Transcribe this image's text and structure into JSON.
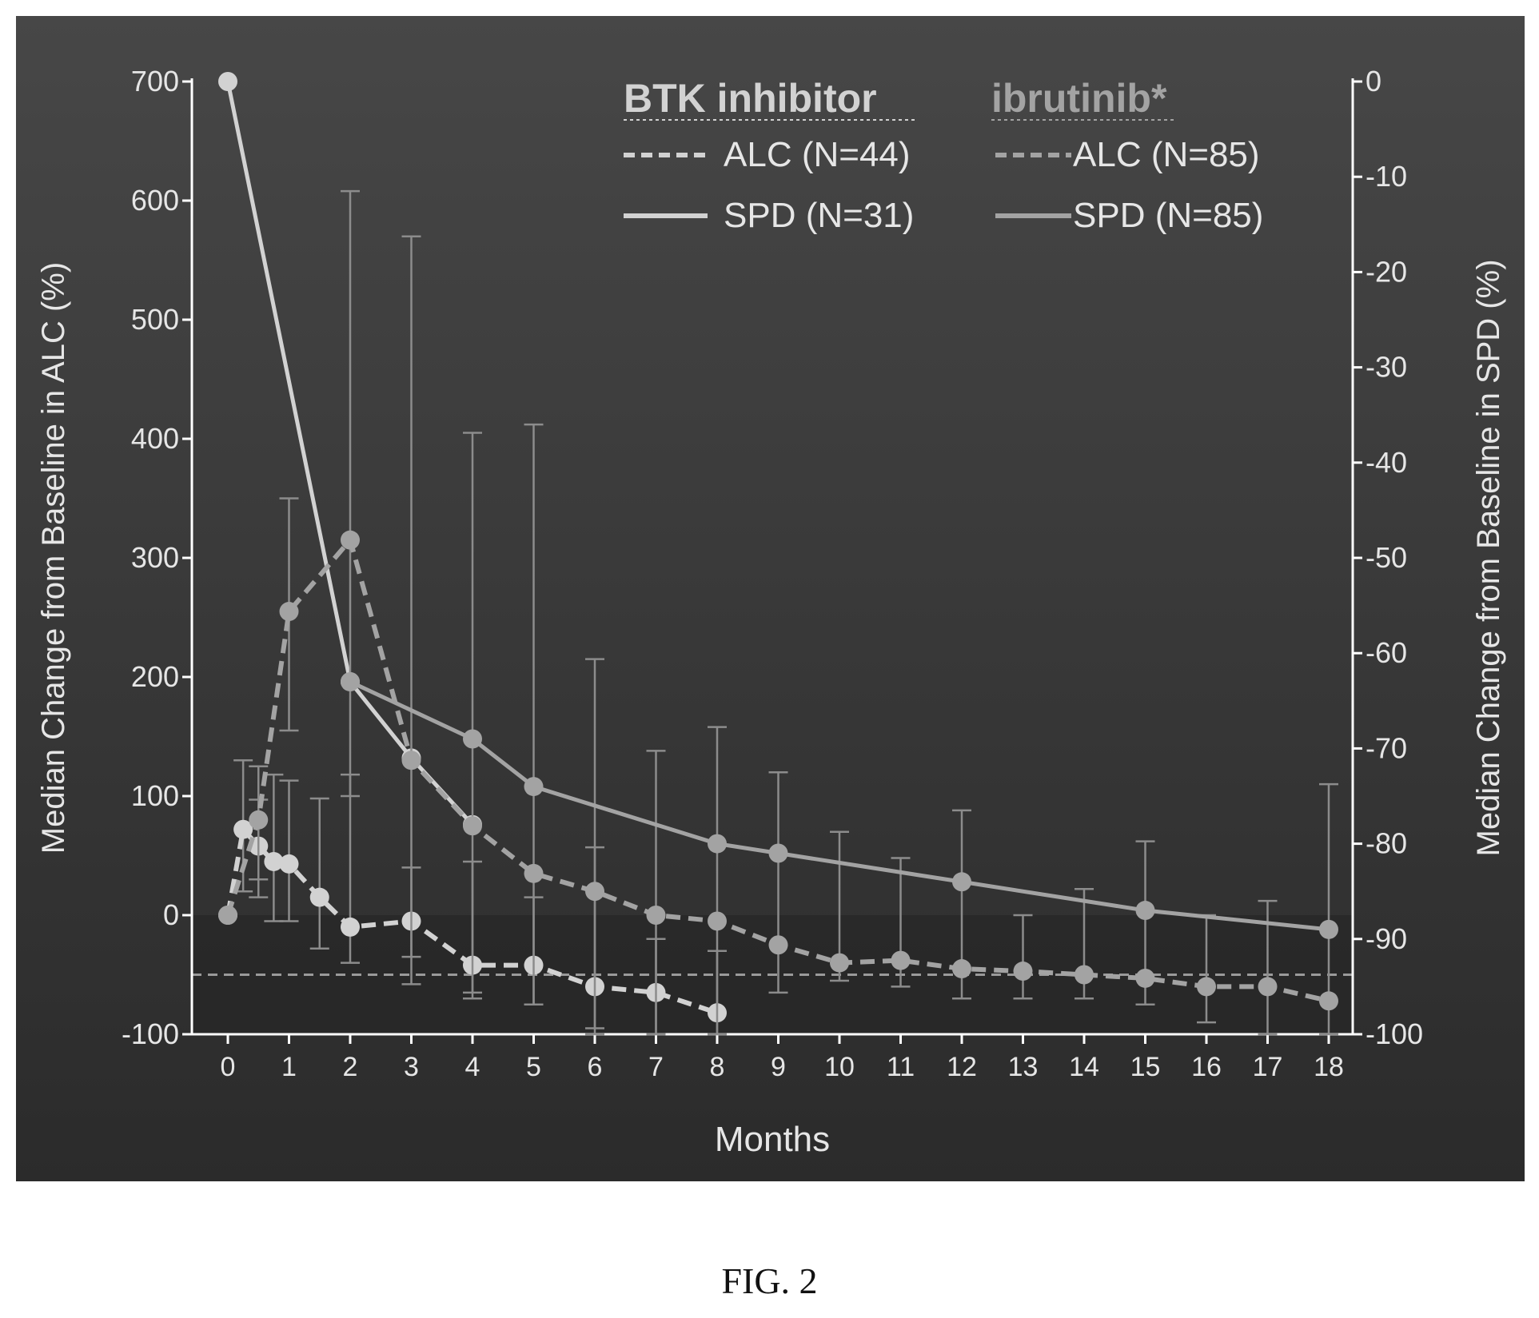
{
  "caption": "FIG. 2",
  "colors": {
    "panel": "#3c3c3c",
    "panel_dark": "#232323",
    "axis": "#ffffff",
    "text": "#e6e6e6",
    "btk": "#d2d2d2",
    "ibrutinib": "#a3a3a3",
    "error_bar": "#8c8c8c"
  },
  "chart_data": {
    "type": "line",
    "xlabel": "Months",
    "ylabel_left": "Median Change from Baseline in ALC (%)",
    "ylabel_right": "Median Change from Baseline in SPD (%)",
    "xlim": [
      0,
      18
    ],
    "ylim_left": [
      -100,
      700
    ],
    "ylim_right": [
      -100,
      0
    ],
    "x_ticks": [
      0,
      1,
      2,
      3,
      4,
      5,
      6,
      7,
      8,
      9,
      10,
      11,
      12,
      13,
      14,
      15,
      16,
      17,
      18
    ],
    "y_ticks_left": [
      -100,
      0,
      100,
      200,
      300,
      400,
      500,
      600,
      700
    ],
    "y_ticks_right": [
      -100,
      -90,
      -80,
      -70,
      -60,
      -50,
      -40,
      -30,
      -20,
      -10,
      0
    ],
    "reference_line": {
      "axis": "left",
      "value": -50,
      "style": "dashed"
    },
    "legend": {
      "placement": "top-center",
      "groups": [
        {
          "title": "BTK inhibitor",
          "entries": [
            "ALC (N=44)",
            "SPD (N=31)"
          ]
        },
        {
          "title": "ibrutinib*",
          "entries": [
            "ALC (N=85)",
            "SPD (N=85)"
          ]
        }
      ]
    },
    "series": [
      {
        "name": "ALC (N=44)",
        "group": "BTK inhibitor",
        "axis": "left",
        "style": "dashed",
        "x": [
          0,
          0.25,
          0.5,
          0.75,
          1,
          1.5,
          2,
          3,
          4,
          5,
          6,
          7,
          8
        ],
        "y": [
          0,
          72,
          58,
          45,
          43,
          15,
          -10,
          -5,
          -42,
          -42,
          -60,
          -65,
          -82
        ],
        "err_upper": [
          0,
          130,
          97,
          118,
          113,
          98,
          118,
          40,
          45,
          15,
          57,
          -20,
          -30
        ],
        "err_lower": [
          0,
          20,
          15,
          -5,
          -5,
          -28,
          -40,
          -58,
          -70,
          -75,
          -100,
          -100,
          -100
        ]
      },
      {
        "name": "SPD (N=31)",
        "group": "BTK inhibitor",
        "axis": "right",
        "style": "solid",
        "x": [
          0,
          2,
          3,
          4
        ],
        "y": [
          0,
          -63,
          -71,
          -78
        ]
      },
      {
        "name": "ALC (N=85)",
        "group": "ibrutinib*",
        "axis": "left",
        "style": "dashed",
        "x": [
          0,
          0.5,
          1,
          2,
          3,
          4,
          5,
          6,
          7,
          8,
          9,
          10,
          11,
          12,
          13,
          14,
          15,
          16,
          17,
          18
        ],
        "y": [
          0,
          80,
          255,
          315,
          130,
          75,
          35,
          20,
          0,
          -5,
          -25,
          -40,
          -38,
          -45,
          -47,
          -50,
          -53,
          -60,
          -60,
          -72
        ],
        "err_upper": [
          0,
          125,
          350,
          608,
          570,
          405,
          412,
          215,
          138,
          158,
          120,
          70,
          48,
          88,
          0,
          22,
          62,
          0,
          12,
          110
        ],
        "err_lower": [
          0,
          30,
          155,
          100,
          -35,
          -65,
          -75,
          -95,
          -100,
          -100,
          -65,
          -55,
          -60,
          -70,
          -70,
          -70,
          -75,
          -90,
          -100,
          -100
        ]
      },
      {
        "name": "SPD (N=85)",
        "group": "ibrutinib*",
        "axis": "right",
        "style": "solid",
        "x": [
          2,
          4,
          5,
          8,
          9,
          12,
          15,
          18
        ],
        "y": [
          -63,
          -69,
          -74,
          -80,
          -81,
          -84,
          -87,
          -89
        ]
      }
    ]
  }
}
